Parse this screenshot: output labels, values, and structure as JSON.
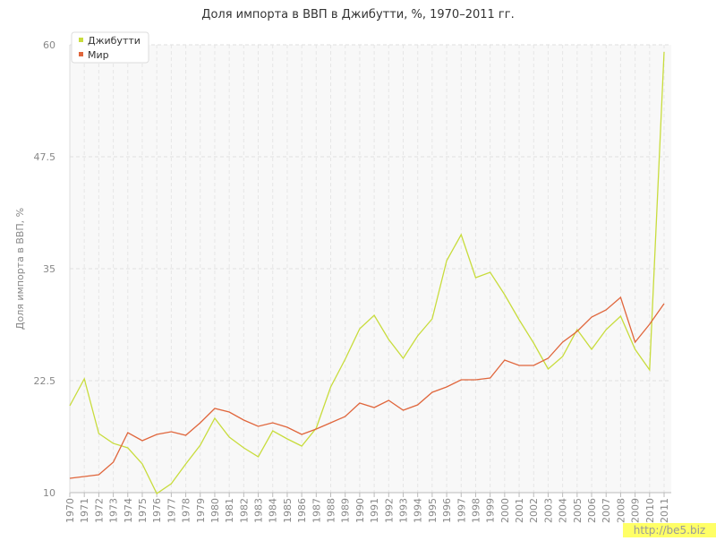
{
  "chart_data": {
    "type": "line",
    "title": "Доля импорта в ВВП в Джибутти, %, 1970–2011 гг.",
    "y_label": "Доля импорта в ВВП, %",
    "categories": [
      "1970",
      "1971",
      "1972",
      "1973",
      "1974",
      "1975",
      "1976",
      "1977",
      "1978",
      "1979",
      "1980",
      "1981",
      "1982",
      "1983",
      "1984",
      "1985",
      "1986",
      "1987",
      "1988",
      "1989",
      "1990",
      "1991",
      "1992",
      "1993",
      "1994",
      "1995",
      "1996",
      "1997",
      "1998",
      "1999",
      "2000",
      "2001",
      "2002",
      "2003",
      "2004",
      "2005",
      "2006",
      "2007",
      "2008",
      "2009",
      "2010",
      "2011"
    ],
    "series": [
      {
        "name": "Джибутти",
        "color": "#c8dc3c",
        "values": [
          19.7,
          22.7,
          16.6,
          15.5,
          15.0,
          13.2,
          9.9,
          11.0,
          13.2,
          15.3,
          18.3,
          16.2,
          15.0,
          14.0,
          16.9,
          16.0,
          15.2,
          17.2,
          21.8,
          24.9,
          28.3,
          29.8,
          27.1,
          25.0,
          27.5,
          29.4,
          35.9,
          38.8,
          34.0,
          34.6,
          32.1,
          29.3,
          26.7,
          23.8,
          25.2,
          28.2,
          26.0,
          28.2,
          29.7,
          26.0,
          23.7,
          59.2
        ]
      },
      {
        "name": "Мир",
        "color": "#e0663c",
        "values": [
          11.6,
          11.8,
          12.0,
          13.4,
          16.7,
          15.8,
          16.5,
          16.8,
          16.4,
          17.8,
          19.4,
          19.0,
          18.1,
          17.4,
          17.8,
          17.3,
          16.5,
          17.1,
          17.8,
          18.5,
          20.0,
          19.5,
          20.3,
          19.2,
          19.8,
          21.2,
          21.8,
          22.6,
          22.6,
          22.8,
          24.8,
          24.2,
          24.2,
          25.0,
          26.8,
          28.0,
          29.6,
          30.4,
          31.8,
          26.8,
          28.8,
          31.1
        ]
      }
    ],
    "ylim": [
      10,
      60
    ],
    "yticks": [
      10,
      22.5,
      35,
      47.5,
      60
    ],
    "grid": true,
    "legend": "top-left",
    "watermark": "http://be5.biz"
  }
}
